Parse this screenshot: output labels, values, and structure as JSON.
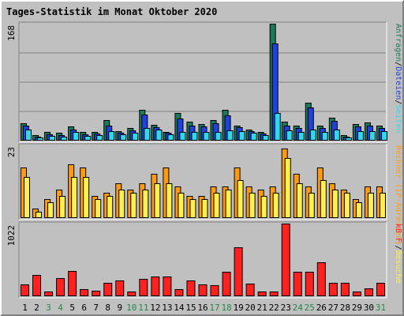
{
  "title": "Tages-Statistik im Monat Oktober 2020",
  "chart_data": {
    "type": "bar",
    "title": "Tages-Statistik im Monat Oktober 2020",
    "days": [
      1,
      2,
      3,
      4,
      5,
      6,
      7,
      8,
      9,
      10,
      11,
      12,
      13,
      14,
      15,
      16,
      17,
      18,
      19,
      20,
      21,
      22,
      23,
      24,
      25,
      26,
      27,
      28,
      29,
      30,
      31
    ],
    "weekend_days": [
      3,
      4,
      10,
      11,
      17,
      18,
      24,
      25,
      31
    ],
    "colors": {
      "anfragen": "#1b7a5a",
      "dateien": "#2040e0",
      "seiten": "#30d8ee",
      "besuche": "#fff050",
      "rechner": "#ff9a10",
      "kb": "#ff2020",
      "weekday_label": "#000000",
      "weekend_label": "#228844",
      "title": "#0000aa"
    },
    "panels": [
      {
        "name": "requests",
        "max_label": "168",
        "ylim": [
          0,
          168
        ],
        "side_labels": [
          {
            "text": "Anfragen",
            "color": "#1b7a5a"
          },
          {
            "text": "/",
            "color": "#000000"
          },
          {
            "text": "Dateien",
            "color": "#2040e0"
          },
          {
            "text": "/",
            "color": "#000000"
          },
          {
            "text": "Seiten",
            "color": "#30d8ee"
          }
        ],
        "series": [
          {
            "name": "Anfragen",
            "key": "anfragen",
            "values": [
              25,
              8,
              12,
              11,
              20,
              12,
              13,
              30,
              14,
              18,
              44,
              23,
              13,
              40,
              27,
              24,
              30,
              44,
              22,
              16,
              12,
              168,
              27,
              21,
              55,
              21,
              33,
              8,
              24,
              26,
              22
            ]
          },
          {
            "name": "Dateien",
            "key": "dateien",
            "values": [
              22,
              6,
              9,
              8,
              16,
              9,
              10,
              22,
              11,
              15,
              38,
              19,
              11,
              32,
              22,
              20,
              25,
              36,
              19,
              14,
              10,
              140,
              22,
              18,
              48,
              18,
              28,
              6,
              20,
              21,
              18
            ]
          },
          {
            "name": "Seiten",
            "key": "seiten",
            "values": [
              16,
              5,
              7,
              6,
              13,
              7,
              8,
              14,
              9,
              11,
              18,
              16,
              9,
              13,
              12,
              13,
              13,
              15,
              14,
              11,
              8,
              40,
              15,
              12,
              16,
              13,
              16,
              5,
              14,
              14,
              14
            ]
          }
        ]
      },
      {
        "name": "visits",
        "max_label": "23",
        "ylim": [
          0,
          23
        ],
        "side_labels": [
          {
            "text": "Rechner (IP-Adressen)",
            "color": "#ff9a10"
          },
          {
            "text": "/",
            "color": "#000000"
          },
          {
            "text": "Besuche",
            "color": "#fff050"
          }
        ],
        "series": [
          {
            "name": "Rechner (IP-Adressen)",
            "key": "rechner",
            "values": [
              16,
              3,
              6,
              9,
              17,
              16,
              7,
              8,
              11,
              9,
              11,
              14,
              16,
              10,
              7,
              7,
              10,
              10,
              16,
              10,
              9,
              10,
              22,
              14,
              10,
              16,
              11,
              9,
              6,
              10,
              10
            ]
          },
          {
            "name": "Besuche",
            "key": "besuche",
            "values": [
              13,
              2,
              5,
              7,
              13,
              13,
              6,
              7,
              9,
              8,
              9,
              11,
              11,
              8,
              6,
              6,
              8,
              9,
              12,
              8,
              7,
              8,
              19,
              11,
              8,
              12,
              9,
              8,
              5,
              8,
              8
            ]
          }
        ]
      },
      {
        "name": "kb",
        "max_label": "1022",
        "ylim": [
          0,
          1022
        ],
        "side_labels": [
          {
            "text": "kB F",
            "color": "#ff2020"
          }
        ],
        "series": [
          {
            "name": "kB F",
            "key": "kb",
            "values": [
              170,
              300,
              70,
              250,
              350,
              100,
              80,
              190,
              220,
              70,
              240,
              280,
              280,
              100,
              220,
              170,
              160,
              340,
              690,
              180,
              70,
              70,
              1022,
              340,
              340,
              480,
              190,
              190,
              70,
              110,
              190
            ]
          }
        ]
      }
    ]
  }
}
